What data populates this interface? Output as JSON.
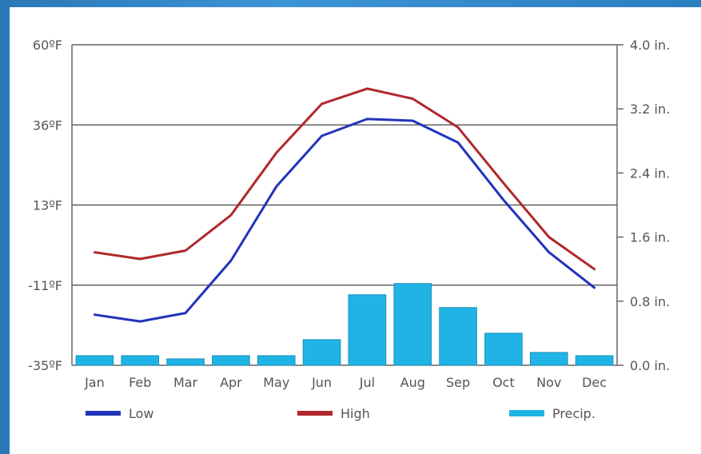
{
  "chart_data": {
    "type": "line",
    "title": "",
    "xlabel": "",
    "ylabel": "",
    "categories": [
      "Jan",
      "Feb",
      "Mar",
      "Apr",
      "May",
      "Jun",
      "Jul",
      "Aug",
      "Sep",
      "Oct",
      "Nov",
      "Dec"
    ],
    "y_left": {
      "ticks": [
        "60ºF",
        "36ºF",
        "13ºF",
        "-11ºF",
        "-35ºF"
      ],
      "range": [
        -35,
        60
      ],
      "unit": "ºF"
    },
    "y_right": {
      "ticks": [
        "4.0 in.",
        "3.2 in.",
        "2.4 in.",
        "1.6 in.",
        "0.8 in.",
        "0.0 in."
      ],
      "range": [
        0,
        4.0
      ],
      "unit": "in."
    },
    "grid": true,
    "legend_position": "bottom",
    "series": [
      {
        "name": "Low",
        "type": "line",
        "axis": "left",
        "color": "#2233bb",
        "values": [
          -20,
          -22,
          -19.5,
          -4,
          18,
          33,
          38,
          37.5,
          31,
          14,
          -1.5,
          -12
        ]
      },
      {
        "name": "High",
        "type": "line",
        "axis": "left",
        "color": "#b0282d",
        "values": [
          -1.5,
          -3.5,
          -1,
          9.5,
          28,
          42.5,
          47,
          44,
          35.5,
          19,
          3,
          -6.5
        ]
      },
      {
        "name": "Precip.",
        "type": "bar",
        "axis": "right",
        "color": "#20b4e6",
        "values": [
          0.12,
          0.12,
          0.08,
          0.12,
          0.12,
          0.32,
          0.88,
          1.02,
          0.72,
          0.4,
          0.16,
          0.12
        ]
      }
    ]
  }
}
